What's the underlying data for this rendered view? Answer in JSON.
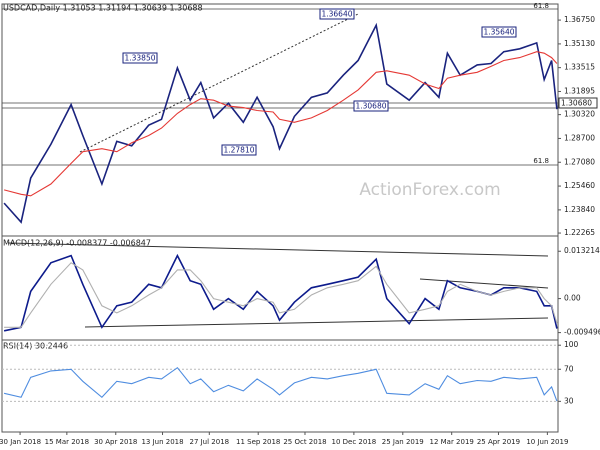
{
  "chart_data": [
    {
      "type": "line",
      "title": "USDCAD,Daily  1.31053 1.31194 1.30639 1.30688",
      "watermark": "ActionForex.com",
      "x": [
        "2018-01-15",
        "2018-01-31",
        "2018-02-09",
        "2018-02-28",
        "2018-03-19",
        "2018-03-30",
        "2018-04-17",
        "2018-05-01",
        "2018-05-15",
        "2018-05-31",
        "2018-06-12",
        "2018-06-27",
        "2018-07-09",
        "2018-07-19",
        "2018-07-31",
        "2018-08-14",
        "2018-08-28",
        "2018-09-10",
        "2018-09-25",
        "2018-10-01",
        "2018-10-15",
        "2018-10-31",
        "2018-11-15",
        "2018-11-30",
        "2018-12-14",
        "2018-12-31",
        "2019-01-10",
        "2019-01-31",
        "2019-02-15",
        "2019-02-28",
        "2019-03-08",
        "2019-03-20",
        "2019-04-05",
        "2019-04-18",
        "2019-04-30",
        "2019-05-15",
        "2019-05-31",
        "2019-06-07",
        "2019-06-14",
        "2019-06-19"
      ],
      "series": [
        {
          "color": "#1a237e",
          "values": [
            1.243,
            1.23,
            1.26,
            1.283,
            1.31,
            1.289,
            1.256,
            1.285,
            1.282,
            1.296,
            1.3,
            1.335,
            1.313,
            1.325,
            1.301,
            1.311,
            1.298,
            1.315,
            1.295,
            1.28,
            1.302,
            1.315,
            1.318,
            1.33,
            1.34,
            1.364,
            1.324,
            1.313,
            1.325,
            1.315,
            1.345,
            1.33,
            1.337,
            1.338,
            1.346,
            1.348,
            1.352,
            1.327,
            1.34,
            1.3069
          ]
        },
        {
          "color": "#e53935",
          "values": [
            1.252,
            1.249,
            1.248,
            1.256,
            1.27,
            1.278,
            1.28,
            1.278,
            1.284,
            1.289,
            1.294,
            1.304,
            1.31,
            1.314,
            1.313,
            1.309,
            1.308,
            1.306,
            1.305,
            1.3,
            1.298,
            1.301,
            1.306,
            1.313,
            1.32,
            1.332,
            1.333,
            1.33,
            1.324,
            1.321,
            1.328,
            1.33,
            1.332,
            1.336,
            1.34,
            1.342,
            1.346,
            1.345,
            1.342,
            1.338
          ]
        }
      ],
      "xlim": [
        "2018-01-13",
        "2019-06-20"
      ],
      "ylim": [
        1.222,
        1.373
      ],
      "yticks": [
        {
          "value": 1.3675,
          "label": "1.36750"
        },
        {
          "value": 1.3513,
          "label": "1.35130"
        },
        1.33515,
        1.31895,
        {
          "value": 1.3032,
          "label": "1.30320"
        },
        {
          "value": 1.287,
          "label": "1.28700"
        },
        {
          "value": 1.2708,
          "label": "1.27080"
        },
        {
          "value": 1.2546,
          "label": "1.25460"
        },
        {
          "value": 1.2384,
          "label": "1.23840"
        },
        1.22265
      ],
      "last_price_label": "1.30680",
      "annotations": [
        "1.36640",
        "1.33850",
        "1.27810",
        "1.35640",
        "1.30680"
      ],
      "fib_labels": [
        "61.8",
        "61.8"
      ]
    },
    {
      "type": "line",
      "title": "MACD(12,26,9) -0.008377 -0.006847",
      "x": [
        "2018-01-15",
        "2018-01-31",
        "2018-02-09",
        "2018-02-28",
        "2018-03-19",
        "2018-03-30",
        "2018-04-17",
        "2018-05-01",
        "2018-05-15",
        "2018-05-31",
        "2018-06-12",
        "2018-06-27",
        "2018-07-09",
        "2018-07-19",
        "2018-07-31",
        "2018-08-14",
        "2018-08-28",
        "2018-09-10",
        "2018-09-25",
        "2018-10-01",
        "2018-10-15",
        "2018-10-31",
        "2018-11-15",
        "2018-11-30",
        "2018-12-14",
        "2018-12-31",
        "2019-01-10",
        "2019-01-31",
        "2019-02-15",
        "2019-02-28",
        "2019-03-08",
        "2019-03-20",
        "2019-04-05",
        "2019-04-18",
        "2019-04-30",
        "2019-05-15",
        "2019-05-31",
        "2019-06-07",
        "2019-06-14",
        "2019-06-19"
      ],
      "series": [
        {
          "color": "#0d1b8c",
          "values": [
            -0.009,
            -0.008,
            0.002,
            0.01,
            0.012,
            0.004,
            -0.008,
            -0.002,
            -0.001,
            0.004,
            0.003,
            0.012,
            0.005,
            0.004,
            -0.003,
            0,
            -0.003,
            0.002,
            -0.002,
            -0.006,
            -0.001,
            0.003,
            0.004,
            0.005,
            0.006,
            0.011,
            0,
            -0.007,
            0,
            -0.003,
            0.005,
            0.003,
            0.002,
            0.001,
            0.003,
            0.003,
            0.002,
            -0.002,
            -0.002,
            -0.008377
          ]
        },
        {
          "color": "#b0b0b0",
          "values": [
            -0.008,
            -0.008,
            -0.004,
            0.004,
            0.01,
            0.008,
            -0.002,
            -0.004,
            -0.002,
            0.001,
            0.003,
            0.008,
            0.008,
            0.005,
            0,
            -0.001,
            -0.002,
            0,
            -0.001,
            -0.004,
            -0.003,
            0.001,
            0.003,
            0.004,
            0.005,
            0.009,
            0.004,
            -0.004,
            -0.003,
            -0.002,
            0.002,
            0.004,
            0.002,
            0.001,
            0.002,
            0.003,
            0.003,
            0,
            -0.002,
            -0.006847
          ]
        }
      ],
      "xlim": [
        "2018-01-13",
        "2019-06-20"
      ],
      "ylim": [
        -0.011,
        0.0144
      ],
      "yticks": [
        0.013214,
        {
          "value": 0,
          "label": "0.00"
        },
        -0.009496
      ]
    },
    {
      "type": "line",
      "title": "RSI(14) 30.2446",
      "x": [
        "2018-01-15",
        "2018-01-31",
        "2018-02-09",
        "2018-02-28",
        "2018-03-19",
        "2018-03-30",
        "2018-04-17",
        "2018-05-01",
        "2018-05-15",
        "2018-05-31",
        "2018-06-12",
        "2018-06-27",
        "2018-07-09",
        "2018-07-19",
        "2018-07-31",
        "2018-08-14",
        "2018-08-28",
        "2018-09-10",
        "2018-09-25",
        "2018-10-01",
        "2018-10-15",
        "2018-10-31",
        "2018-11-15",
        "2018-11-30",
        "2018-12-14",
        "2018-12-31",
        "2019-01-10",
        "2019-01-31",
        "2019-02-15",
        "2019-02-28",
        "2019-03-08",
        "2019-03-20",
        "2019-04-05",
        "2019-04-18",
        "2019-04-30",
        "2019-05-15",
        "2019-05-31",
        "2019-06-07",
        "2019-06-14",
        "2019-06-19"
      ],
      "series": [
        {
          "color": "#4f8de0",
          "values": [
            40,
            35,
            60,
            68,
            70,
            55,
            35,
            55,
            52,
            60,
            58,
            72,
            52,
            58,
            42,
            50,
            43,
            58,
            45,
            38,
            53,
            60,
            58,
            62,
            65,
            70,
            40,
            38,
            52,
            45,
            62,
            52,
            56,
            55,
            60,
            58,
            60,
            38,
            48,
            30.2446
          ]
        }
      ],
      "xlim": [
        "2018-01-13",
        "2019-06-20"
      ],
      "ylim": [
        -7,
        104
      ],
      "yticks": [
        100,
        70,
        30
      ],
      "xticks": [
        {
          "value": "2018-01-30",
          "label": "30 Jan 2018"
        },
        {
          "value": "2018-03-15",
          "label": "15 Mar 2018"
        },
        {
          "value": "2018-04-30",
          "label": "30 Apr 2018"
        },
        {
          "value": "2018-06-13",
          "label": "13 Jun 2018"
        },
        {
          "value": "2018-07-27",
          "label": "27 Jul 2018"
        },
        {
          "value": "2018-09-11",
          "label": "11 Sep 2018"
        },
        {
          "value": "2018-10-25",
          "label": "25 Oct 2018"
        },
        {
          "value": "2018-12-10",
          "label": "10 Dec 2018"
        },
        {
          "value": "2019-01-25",
          "label": "25 Jan 2019"
        },
        {
          "value": "2019-03-12",
          "label": "12 Mar 2019"
        },
        {
          "value": "2019-04-25",
          "label": "25 Apr 2019"
        },
        {
          "value": "2019-06-10",
          "label": "10 Jun 2019"
        }
      ]
    }
  ]
}
